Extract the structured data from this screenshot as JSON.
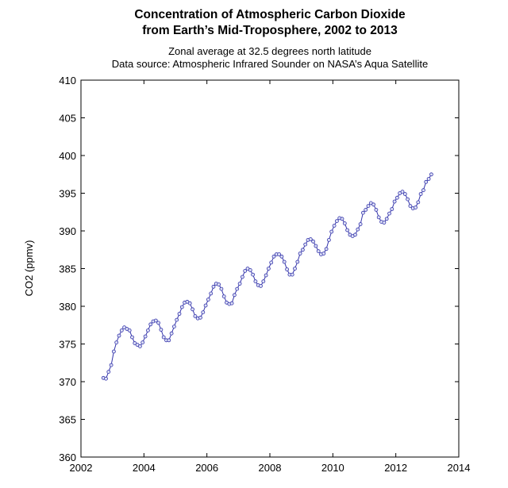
{
  "chart_data": {
    "type": "line",
    "title": [
      "Concentration of Atmospheric Carbon Dioxide",
      "from Earth’s Mid-Troposphere, 2002 to 2013"
    ],
    "subtitle": [
      "Zonal average at 32.5 degrees north latitude",
      "Data source: Atmospheric Infrared Sounder on NASA’s Aqua Satellite"
    ],
    "xlabel": "",
    "ylabel": "CO2 (ppmv)",
    "xlim": [
      2002,
      2014
    ],
    "ylim": [
      360,
      410
    ],
    "xticks": [
      "2002",
      "2004",
      "2006",
      "2008",
      "2010",
      "2012",
      "2014"
    ],
    "yticks": [
      "360",
      "365",
      "370",
      "375",
      "380",
      "385",
      "390",
      "395",
      "400",
      "405",
      "410"
    ],
    "grid": false,
    "series_color": "#3333aa",
    "marker": "circle",
    "x_start_year": 2002.71,
    "x_step_months": 1,
    "values": [
      370.5,
      370.4,
      371.3,
      372.2,
      374.0,
      375.2,
      376.1,
      376.8,
      377.2,
      377.0,
      376.8,
      375.9,
      375.1,
      374.9,
      374.7,
      375.2,
      376.0,
      376.8,
      377.6,
      378.0,
      378.1,
      377.8,
      376.9,
      375.9,
      375.5,
      375.5,
      376.4,
      377.3,
      378.2,
      379.0,
      379.9,
      380.5,
      380.6,
      380.4,
      379.6,
      378.7,
      378.4,
      378.5,
      379.2,
      380.1,
      380.9,
      381.7,
      382.6,
      383.0,
      382.9,
      382.3,
      381.3,
      380.5,
      380.3,
      380.4,
      381.5,
      382.3,
      383.0,
      383.9,
      384.7,
      385.0,
      384.8,
      384.2,
      383.3,
      382.8,
      382.7,
      383.3,
      384.1,
      385.0,
      385.8,
      386.6,
      386.9,
      386.9,
      386.6,
      385.9,
      384.9,
      384.2,
      384.2,
      385.0,
      385.9,
      387.0,
      387.5,
      388.2,
      388.8,
      388.9,
      388.6,
      388.0,
      387.3,
      386.9,
      387.0,
      387.6,
      388.8,
      389.9,
      390.7,
      391.3,
      391.7,
      391.6,
      391.0,
      390.1,
      389.5,
      389.3,
      389.5,
      390.2,
      390.9,
      392.4,
      392.8,
      393.3,
      393.7,
      393.5,
      392.8,
      391.8,
      391.2,
      391.1,
      391.6,
      392.3,
      392.9,
      393.9,
      394.4,
      395.0,
      395.2,
      394.9,
      394.2,
      393.3,
      393.0,
      393.1,
      393.8,
      394.9,
      395.4,
      396.5,
      396.9,
      397.5
    ]
  }
}
